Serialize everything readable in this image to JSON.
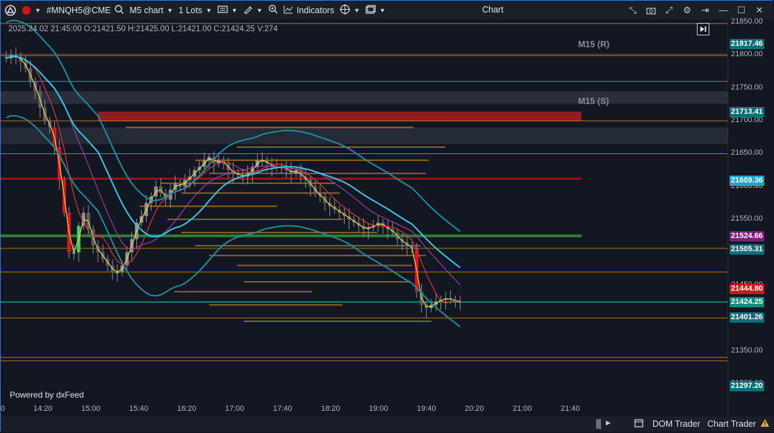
{
  "toolbar": {
    "symbol": "#MNQH5@CME",
    "timeframe": "M5 chart",
    "lots": "1 Lots",
    "indicators": "Indicators",
    "title": "Chart"
  },
  "ohlc": "2025.24.02 21:45:00 O:21421.50 H:21425.00 L:21421.00 C:21424.25 V:274",
  "zones": {
    "resistance": "M15 (R)",
    "support": "M15 (S)"
  },
  "powered_by": "Powered by dxFeed",
  "y_ticks": [
    "21850.00",
    "21800.00",
    "21750.00",
    "21700.00",
    "21650.00",
    "21600.00",
    "21550.00",
    "21500.00",
    "21450.00",
    "21400.00",
    "21350.00",
    "21300.00"
  ],
  "x_ticks": [
    "0",
    "14:20",
    "15:00",
    "15:40",
    "16:20",
    "17:00",
    "17:40",
    "18:20",
    "19:00",
    "19:40",
    "20:20",
    "21:00",
    "21:40"
  ],
  "price_badges": [
    {
      "label": "21817.46",
      "color": "#0e6e7a",
      "text": "#ffffff"
    },
    {
      "label": "21713.41",
      "color": "#0e6e7a",
      "text": "#ffffff"
    },
    {
      "label": "21609.36",
      "color": "#1aa6c9",
      "text": "#ffffff"
    },
    {
      "label": "21524.66",
      "color": "#7b1f78",
      "text": "#ffffff"
    },
    {
      "label": "21505.31",
      "color": "#0e6e7a",
      "text": "#ffffff"
    },
    {
      "label": "21444.80",
      "color": "#d0161d",
      "text": "#ffffff"
    },
    {
      "label": "21424.25",
      "color": "#0f8a78",
      "text": "#ffffff"
    },
    {
      "label": "21401.26",
      "color": "#0e6e7a",
      "text": "#ffffff"
    },
    {
      "label": "21297.20",
      "color": "#0e6e7a",
      "text": "#ffffff"
    }
  ],
  "statusbar": {
    "dom_trader": "DOM Trader",
    "chart_trader": "Chart Trader"
  },
  "chart_data": {
    "type": "candlestick",
    "y_range": [
      21280,
      21855
    ],
    "x": [
      "13:55",
      "14:00",
      "14:05",
      "14:10",
      "14:15",
      "14:20",
      "14:25",
      "14:30",
      "14:35",
      "14:40",
      "14:45",
      "14:50",
      "14:55",
      "15:00",
      "15:05",
      "15:10",
      "15:15",
      "15:20",
      "15:25",
      "15:30",
      "15:35",
      "15:40",
      "15:45",
      "15:50",
      "15:55",
      "16:00",
      "16:05",
      "16:10",
      "16:15",
      "16:20",
      "16:25",
      "16:30",
      "16:35",
      "16:40",
      "16:45",
      "16:50",
      "16:55",
      "17:00",
      "17:05",
      "17:10",
      "17:15",
      "17:20",
      "17:25",
      "17:30",
      "17:35",
      "17:40",
      "17:45",
      "17:50",
      "17:55",
      "18:00",
      "18:05",
      "18:10",
      "18:15",
      "18:20",
      "18:25",
      "18:30",
      "18:35",
      "18:40",
      "18:45",
      "18:50",
      "18:55",
      "19:00",
      "19:05",
      "19:10",
      "19:15",
      "19:20",
      "19:25",
      "19:30",
      "19:35",
      "19:40",
      "19:45",
      "19:50",
      "19:55",
      "20:00",
      "20:05",
      "20:10",
      "20:15",
      "20:20",
      "20:25",
      "20:30",
      "20:35",
      "20:40",
      "20:45",
      "20:50",
      "20:55",
      "21:00",
      "21:05",
      "21:10",
      "21:15",
      "21:20",
      "21:25",
      "21:30",
      "21:35",
      "21:40",
      "21:45"
    ],
    "close": [
      21795,
      21800,
      21798,
      21790,
      21780,
      21760,
      21745,
      21720,
      21700,
      21690,
      21660,
      21610,
      21560,
      21500,
      21500,
      21540,
      21560,
      21535,
      21510,
      21500,
      21490,
      21480,
      21470,
      21470,
      21480,
      21500,
      21520,
      21545,
      21555,
      21575,
      21585,
      21600,
      21590,
      21580,
      21595,
      21605,
      21600,
      21610,
      21615,
      21625,
      21630,
      21640,
      21645,
      21635,
      21640,
      21635,
      21625,
      21620,
      21618,
      21615,
      21620,
      21630,
      21640,
      21640,
      21635,
      21630,
      21628,
      21630,
      21625,
      21620,
      21625,
      21615,
      21610,
      21600,
      21590,
      21585,
      21575,
      21570,
      21565,
      21560,
      21555,
      21550,
      21545,
      21540,
      21535,
      21538,
      21540,
      21545,
      21540,
      21535,
      21530,
      21520,
      21515,
      21510,
      21505,
      21440,
      21420,
      21415,
      21420,
      21425,
      21428,
      21430,
      21428,
      21425,
      21424
    ],
    "series": [
      {
        "name": "",
        "color": "#f2d63a"
      },
      {
        "name": "",
        "color": "#e5343b"
      },
      {
        "name": "",
        "color": "#9c3fa8"
      },
      {
        "name": "",
        "color": "#36c9e8"
      },
      {
        "name": "",
        "color": "#1d8fa0"
      }
    ],
    "levels": [
      21817.46,
      21713.41,
      21609.36,
      21524.66,
      21505.31,
      21444.8,
      21424.25,
      21401.26,
      21297.2
    ]
  }
}
